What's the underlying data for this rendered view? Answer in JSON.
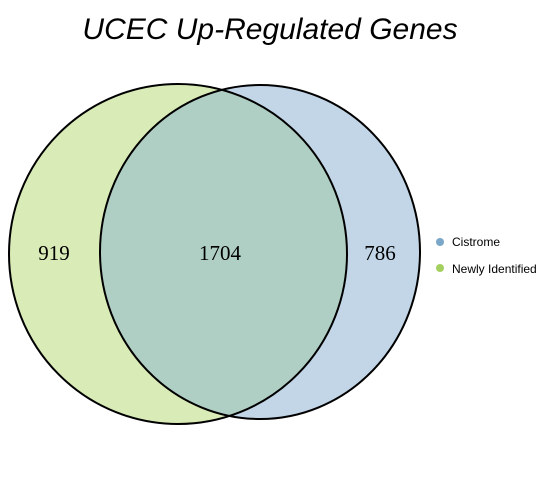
{
  "title": "UCEC Up-Regulated Genes",
  "sets": [
    {
      "name": "Cistrome",
      "color": "#c2d6e8",
      "legend_color": "#7aa6c8"
    },
    {
      "name": "Newly Identified",
      "color": "#d9ebb6",
      "legend_color": "#a4d060"
    }
  ],
  "overlap_color": "#b0cfc4",
  "counts": {
    "newly_identified_only": "919",
    "both": "1704",
    "cistrome_only": "786"
  }
}
